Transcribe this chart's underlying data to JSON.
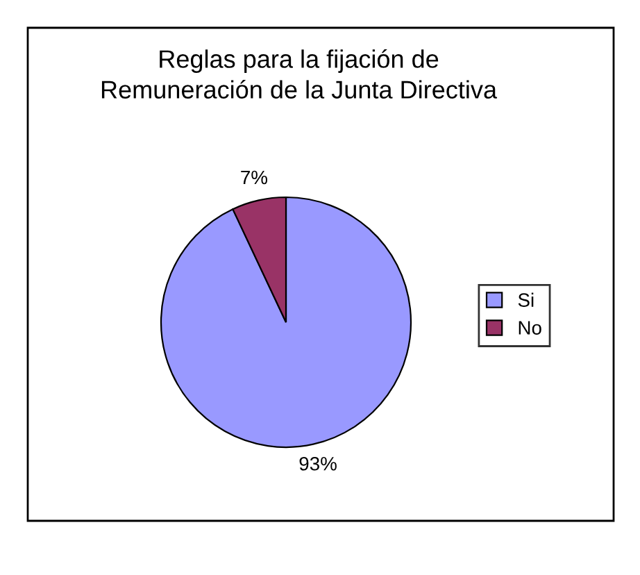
{
  "chart_data": {
    "type": "pie",
    "title": "Reglas para la fijación de\nRemuneración de la Junta Directiva",
    "categories": [
      "Si",
      "No"
    ],
    "values": [
      93,
      7
    ],
    "colors": [
      "#9999ff",
      "#993366"
    ],
    "value_labels": [
      "93%",
      "7%"
    ],
    "legend": "right"
  }
}
